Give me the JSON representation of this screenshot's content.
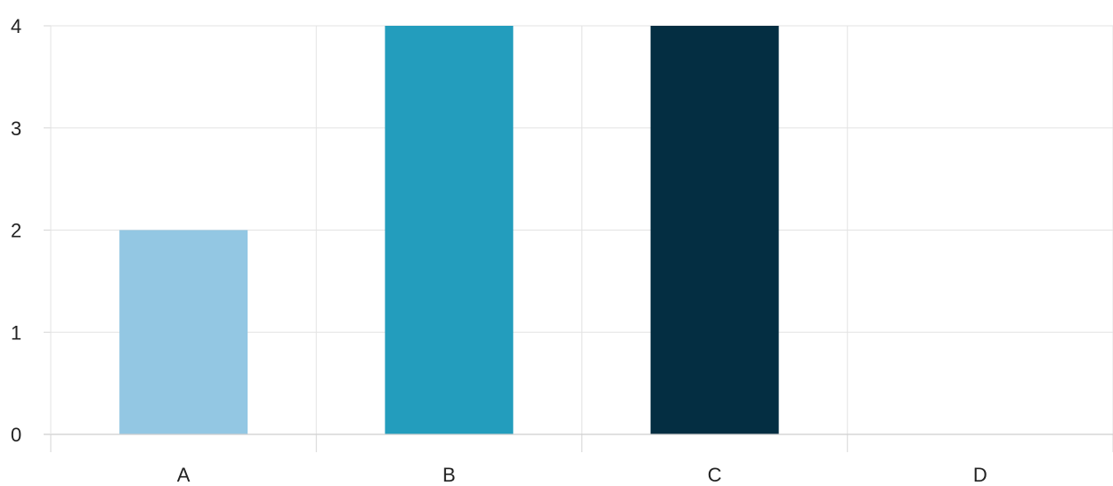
{
  "chart_data": {
    "type": "bar",
    "categories": [
      "A",
      "B",
      "C",
      "D"
    ],
    "values": [
      2,
      4,
      4,
      0
    ],
    "colors": [
      "#93c7e3",
      "#239dbd",
      "#042e42",
      "#cccccc"
    ],
    "ylim": [
      0,
      4
    ],
    "yticks": [
      "0",
      "1",
      "2",
      "3",
      "4"
    ],
    "grid": true,
    "legend": "none"
  }
}
